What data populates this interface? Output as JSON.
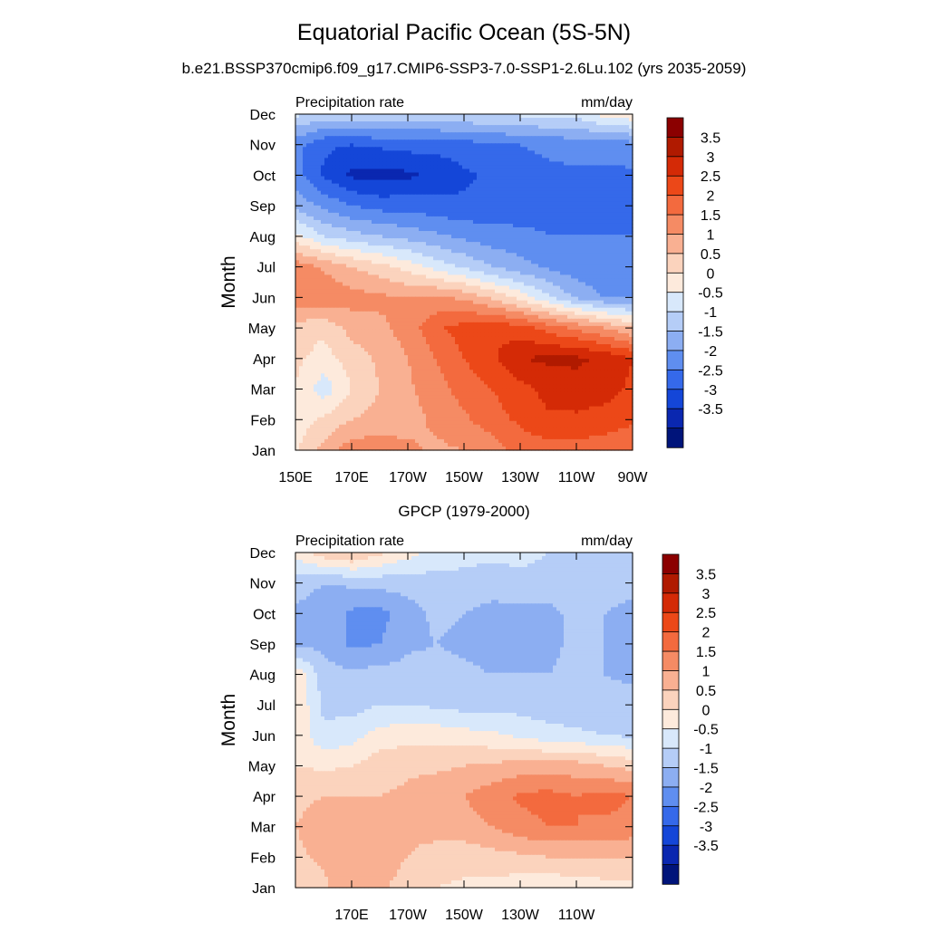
{
  "title": "Equatorial Pacific Ocean (5S-5N)",
  "subtitle": "b.e21.BSSP370cmip6.f09_g17.CMIP6-SSP3-7.0-SSP1-2.6Lu.102 (yrs 2035-2059)",
  "colorbar": {
    "labels": [
      "3.5",
      "3",
      "2.5",
      "2",
      "1.5",
      "1",
      "0.5",
      "0",
      "-0.5",
      "-1",
      "-1.5",
      "-2",
      "-2.5",
      "-3",
      "-3.5"
    ],
    "colors_top_to_bottom": [
      "#8b0000",
      "#b01a00",
      "#d42a06",
      "#ec4818",
      "#f36a3e",
      "#f58b64",
      "#f9b092",
      "#fbd3bd",
      "#fdeadc",
      "#d8e8fb",
      "#b5cdf7",
      "#8caef2",
      "#5f8ef0",
      "#3569ea",
      "#1446d8",
      "#0a27b0",
      "#00147a"
    ]
  },
  "chart_data": [
    {
      "type": "heatmap",
      "title": "",
      "left_label": "Precipitation rate",
      "right_label": "mm/day",
      "ylabel": "Month",
      "x_ticks": [
        "150E",
        "170E",
        "170W",
        "150W",
        "130W",
        "110W",
        "90W"
      ],
      "y_ticks": [
        "Jan",
        "Feb",
        "Mar",
        "Apr",
        "May",
        "Jun",
        "Jul",
        "Aug",
        "Sep",
        "Oct",
        "Nov",
        "Dec"
      ],
      "xlim": [
        "150E",
        "90W"
      ],
      "ylim": [
        "Jan",
        "Dec"
      ],
      "contour_levels": [
        -3.5,
        -3,
        -2.5,
        -2,
        -1.5,
        -1,
        -0.5,
        0,
        0.5,
        1,
        1.5,
        2,
        2.5,
        3,
        3.5
      ],
      "columns": [
        "150E",
        "160E",
        "170E",
        "180",
        "170W",
        "160W",
        "150W",
        "140W",
        "130W",
        "120W",
        "110W",
        "100W",
        "90W"
      ],
      "values_by_month": [
        [
          0.4,
          1.2,
          1.8,
          1.8,
          1.6,
          1.4,
          1.5,
          1.7,
          2.2,
          2.3,
          2.3,
          2.2,
          2.0
        ],
        [
          0.2,
          0.6,
          1.0,
          1.2,
          1.3,
          1.6,
          1.9,
          2.3,
          2.6,
          2.9,
          2.9,
          2.8,
          2.6
        ],
        [
          0.5,
          -0.3,
          0.5,
          1.0,
          1.4,
          1.8,
          2.2,
          2.5,
          2.8,
          3.2,
          3.3,
          3.2,
          2.9
        ],
        [
          0.6,
          0.3,
          0.7,
          1.1,
          1.5,
          2.0,
          2.5,
          2.9,
          3.5,
          3.6,
          3.6,
          3.4,
          3.0
        ],
        [
          0.8,
          0.6,
          1.2,
          1.4,
          1.7,
          2.4,
          2.7,
          2.9,
          2.7,
          2.3,
          1.9,
          1.5,
          1.0
        ],
        [
          1.8,
          2.0,
          1.7,
          1.6,
          1.5,
          1.6,
          1.4,
          0.9,
          0.3,
          -0.4,
          -1.1,
          -1.5,
          -1.6
        ],
        [
          1.8,
          1.4,
          1.0,
          0.7,
          0.3,
          -0.2,
          -0.6,
          -1.0,
          -1.3,
          -1.6,
          -1.8,
          -2.0,
          -1.8
        ],
        [
          0.2,
          -0.5,
          -0.8,
          -1.0,
          -1.2,
          -1.4,
          -1.6,
          -1.8,
          -1.9,
          -2.0,
          -2.0,
          -2.0,
          -2.0
        ],
        [
          -1.2,
          -1.6,
          -2.0,
          -2.2,
          -2.2,
          -2.3,
          -2.4,
          -2.3,
          -2.2,
          -2.1,
          -2.1,
          -2.1,
          -2.1
        ],
        [
          -1.8,
          -2.6,
          -3.1,
          -3.2,
          -3.1,
          -2.9,
          -2.6,
          -2.4,
          -2.2,
          -2.1,
          -2.1,
          -2.1,
          -2.1
        ],
        [
          -1.8,
          -2.4,
          -2.5,
          -2.4,
          -2.3,
          -2.3,
          -2.2,
          -2.1,
          -2.0,
          -1.9,
          -1.8,
          -1.8,
          -1.7
        ],
        [
          -0.4,
          -0.6,
          -0.6,
          -0.5,
          -0.6,
          -0.6,
          -0.5,
          -0.5,
          -0.4,
          -0.3,
          -0.3,
          0.2,
          0.4
        ]
      ]
    },
    {
      "type": "heatmap",
      "title": "GPCP (1979-2000)",
      "left_label": "Precipitation rate",
      "right_label": "mm/day",
      "ylabel": "Month",
      "x_ticks": [
        "170E",
        "170W",
        "150W",
        "130W",
        "110W"
      ],
      "y_ticks": [
        "Jan",
        "Feb",
        "Mar",
        "Apr",
        "May",
        "Jun",
        "Jul",
        "Aug",
        "Sep",
        "Oct",
        "Nov",
        "Dec"
      ],
      "xlim": [
        "150E",
        "90W"
      ],
      "ylim": [
        "Jan",
        "Dec"
      ],
      "contour_levels": [
        -3.5,
        -3,
        -2.5,
        -2,
        -1.5,
        -1,
        -0.5,
        0,
        0.5,
        1,
        1.5,
        2,
        2.5,
        3,
        3.5
      ],
      "columns": [
        "150E",
        "160E",
        "170E",
        "180",
        "170W",
        "160W",
        "150W",
        "140W",
        "130W",
        "120W",
        "110W",
        "100W",
        "90W"
      ],
      "values_by_month": [
        [
          0.6,
          0.9,
          1.3,
          1.1,
          0.8,
          0.5,
          0.4,
          0.3,
          0.2,
          0.1,
          0.2,
          0.3,
          0.3
        ],
        [
          0.9,
          1.1,
          1.4,
          1.2,
          1.0,
          0.8,
          0.7,
          0.8,
          0.9,
          1.0,
          1.0,
          1.0,
          1.0
        ],
        [
          1.0,
          1.2,
          1.3,
          1.1,
          1.1,
          1.2,
          1.3,
          1.5,
          1.8,
          2.0,
          2.0,
          1.9,
          1.8
        ],
        [
          0.9,
          1.0,
          1.0,
          1.0,
          1.1,
          1.3,
          1.5,
          1.8,
          2.1,
          2.2,
          2.0,
          2.2,
          2.0
        ],
        [
          0.5,
          0.4,
          0.5,
          0.8,
          0.9,
          0.9,
          1.0,
          1.1,
          1.2,
          1.2,
          1.2,
          1.0,
          0.8
        ],
        [
          0.4,
          -0.4,
          -0.2,
          0.2,
          0.3,
          0.3,
          0.2,
          0.1,
          -0.1,
          -0.3,
          -0.4,
          -0.5,
          -0.6
        ],
        [
          0.5,
          -0.6,
          -0.7,
          -0.5,
          -0.5,
          -0.6,
          -0.7,
          -0.7,
          -0.7,
          -0.8,
          -0.8,
          -0.8,
          -0.8
        ],
        [
          0.4,
          -0.8,
          -0.9,
          -0.8,
          -0.8,
          -0.8,
          -0.9,
          -1.0,
          -1.0,
          -1.0,
          -0.9,
          -1.0,
          -1.1
        ],
        [
          -1.2,
          -1.1,
          -1.6,
          -1.5,
          -1.1,
          -1.0,
          -1.1,
          -1.2,
          -1.2,
          -1.1,
          -0.9,
          -1.0,
          -1.1
        ],
        [
          -1.1,
          -1.2,
          -1.6,
          -1.7,
          -1.2,
          -0.9,
          -1.0,
          -1.2,
          -1.2,
          -1.2,
          -0.8,
          -1.0,
          -1.2
        ],
        [
          -0.8,
          -1.0,
          -0.9,
          -0.8,
          -0.8,
          -0.7,
          -0.6,
          -0.7,
          -0.6,
          -0.6,
          -0.6,
          -0.7,
          -0.8
        ],
        [
          0.2,
          0.8,
          1.1,
          0.6,
          0.2,
          -0.2,
          -0.4,
          -0.4,
          -0.4,
          -0.5,
          -0.5,
          -0.6,
          -0.6
        ]
      ]
    }
  ]
}
